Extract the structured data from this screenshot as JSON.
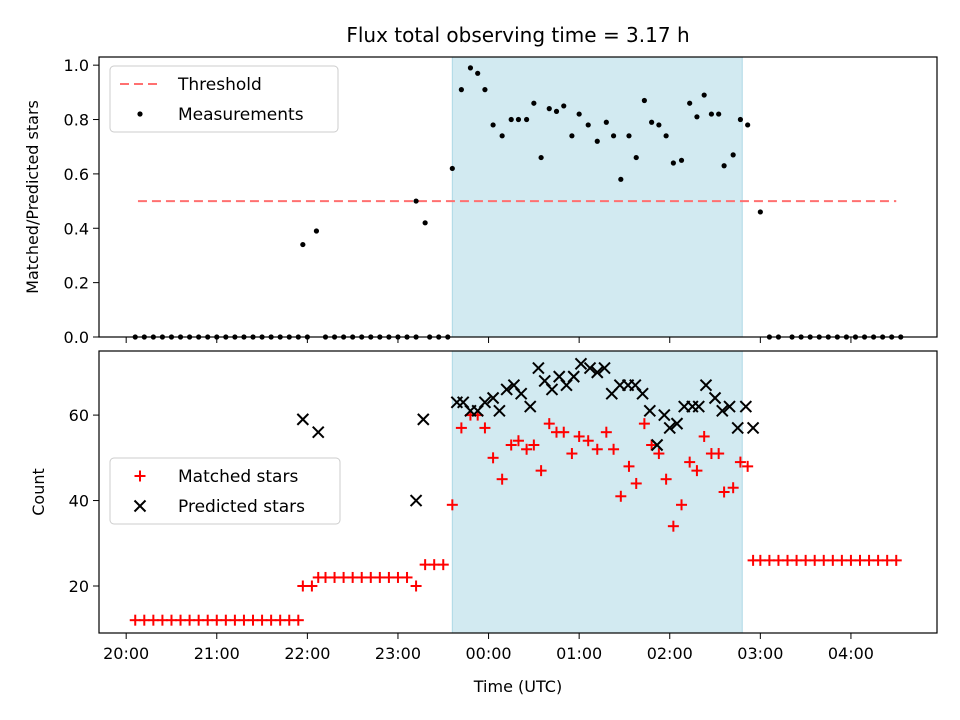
{
  "chart_data": {
    "type": "scatter",
    "title": "Flux total observing time = 3.17 h",
    "xlabel": "Time (UTC)",
    "x_axis_unit": "hours (UTC)",
    "x_ticks": [
      {
        "value": 20,
        "label": "20:00"
      },
      {
        "value": 21,
        "label": "21:00"
      },
      {
        "value": 22,
        "label": "22:00"
      },
      {
        "value": 23,
        "label": "23:00"
      },
      {
        "value": 24,
        "label": "00:00"
      },
      {
        "value": 25,
        "label": "01:00"
      },
      {
        "value": 26,
        "label": "02:00"
      },
      {
        "value": 27,
        "label": "03:00"
      },
      {
        "value": 28,
        "label": "04:00"
      }
    ],
    "xlim": [
      19.7,
      28.95
    ],
    "shaded_region": {
      "x": [
        23.6,
        26.8
      ],
      "color": "#add8e6"
    },
    "top": {
      "ylabel": "Matched/Predicted stars",
      "ylim": [
        0,
        1.03
      ],
      "y_ticks": [
        {
          "value": 0,
          "label": "0.0"
        },
        {
          "value": 0.2,
          "label": "0.2"
        },
        {
          "value": 0.4,
          "label": "0.4"
        },
        {
          "value": 0.6,
          "label": "0.6"
        },
        {
          "value": 0.8,
          "label": "0.8"
        },
        {
          "value": 1.0,
          "label": "1.0"
        }
      ],
      "legend": [
        {
          "name": "Threshold",
          "marker": "dashed-line",
          "color": "#ff7070"
        },
        {
          "name": "Measurements",
          "marker": "dot",
          "color": "#000000"
        }
      ],
      "threshold": {
        "value": 0.5,
        "x": [
          20.13,
          28.5
        ]
      },
      "measurements": {
        "x": [
          20.1,
          20.2,
          20.3,
          20.4,
          20.5,
          20.6,
          20.7,
          20.8,
          20.9,
          21.0,
          21.1,
          21.2,
          21.3,
          21.4,
          21.5,
          21.6,
          21.7,
          21.8,
          21.9,
          21.95,
          22.0,
          22.1,
          22.2,
          22.3,
          22.4,
          22.5,
          22.6,
          22.7,
          22.8,
          22.9,
          23.0,
          23.1,
          23.2,
          23.2,
          23.3,
          23.35,
          23.45,
          23.55,
          23.6,
          23.7,
          23.8,
          23.88,
          23.96,
          24.05,
          24.15,
          24.25,
          24.33,
          24.42,
          24.5,
          24.58,
          24.67,
          24.75,
          24.83,
          24.92,
          25.0,
          25.1,
          25.2,
          25.3,
          25.38,
          25.46,
          25.55,
          25.63,
          25.72,
          25.8,
          25.88,
          25.96,
          26.04,
          26.13,
          26.22,
          26.3,
          26.38,
          26.46,
          26.54,
          26.6,
          26.7,
          26.78,
          26.86,
          27.0,
          27.1,
          27.2,
          27.35,
          27.45,
          27.55,
          27.65,
          27.75,
          27.85,
          27.95,
          28.05,
          28.15,
          28.25,
          28.35,
          28.45,
          28.55
        ],
        "y": [
          0,
          0,
          0,
          0,
          0,
          0,
          0,
          0,
          0,
          0,
          0,
          0,
          0,
          0,
          0,
          0,
          0,
          0,
          0,
          0.34,
          0,
          0.39,
          0,
          0,
          0,
          0,
          0,
          0,
          0,
          0,
          0,
          0,
          0,
          0.5,
          0.42,
          0,
          0,
          0,
          0.62,
          0.91,
          0.99,
          0.97,
          0.91,
          0.78,
          0.74,
          0.8,
          0.8,
          0.8,
          0.86,
          0.66,
          0.84,
          0.83,
          0.85,
          0.74,
          0.82,
          0.78,
          0.72,
          0.79,
          0.74,
          0.58,
          0.74,
          0.66,
          0.87,
          0.79,
          0.78,
          0.74,
          0.64,
          0.65,
          0.86,
          0.81,
          0.89,
          0.82,
          0.82,
          0.63,
          0.67,
          0.8,
          0.78,
          0.46,
          0,
          0,
          0,
          0,
          0,
          0,
          0,
          0,
          0,
          0,
          0,
          0,
          0,
          0,
          0
        ]
      }
    },
    "bottom": {
      "ylabel": "Count",
      "ylim": [
        9,
        75
      ],
      "y_ticks": [
        {
          "value": 20,
          "label": "20"
        },
        {
          "value": 40,
          "label": "40"
        },
        {
          "value": 60,
          "label": "60"
        }
      ],
      "legend": [
        {
          "name": "Matched stars",
          "marker": "plus",
          "color": "#ff0000"
        },
        {
          "name": "Predicted stars",
          "marker": "x",
          "color": "#000000"
        }
      ],
      "matched": {
        "x": [
          20.1,
          20.2,
          20.3,
          20.4,
          20.5,
          20.6,
          20.7,
          20.8,
          20.9,
          21.0,
          21.1,
          21.2,
          21.3,
          21.4,
          21.5,
          21.6,
          21.7,
          21.8,
          21.9,
          21.95,
          22.05,
          22.12,
          22.2,
          22.3,
          22.4,
          22.5,
          22.6,
          22.7,
          22.8,
          22.9,
          23.0,
          23.1,
          23.2,
          23.3,
          23.4,
          23.5,
          23.6,
          23.7,
          23.8,
          23.88,
          23.96,
          24.05,
          24.15,
          24.25,
          24.33,
          24.42,
          24.5,
          24.58,
          24.67,
          24.75,
          24.83,
          24.92,
          25.0,
          25.1,
          25.2,
          25.3,
          25.38,
          25.46,
          25.55,
          25.63,
          25.72,
          25.8,
          25.88,
          25.96,
          26.04,
          26.13,
          26.22,
          26.3,
          26.38,
          26.46,
          26.54,
          26.6,
          26.7,
          26.78,
          26.86,
          26.92,
          27.0,
          27.1,
          27.2,
          27.3,
          27.4,
          27.5,
          27.6,
          27.7,
          27.8,
          27.9,
          28.0,
          28.1,
          28.2,
          28.3,
          28.4,
          28.5
        ],
        "y": [
          12,
          12,
          12,
          12,
          12,
          12,
          12,
          12,
          12,
          12,
          12,
          12,
          12,
          12,
          12,
          12,
          12,
          12,
          12,
          20,
          20,
          22,
          22,
          22,
          22,
          22,
          22,
          22,
          22,
          22,
          22,
          22,
          20,
          25,
          25,
          25,
          39,
          57,
          60,
          60,
          57,
          50,
          45,
          53,
          54,
          52,
          53,
          47,
          58,
          56,
          56,
          51,
          55,
          54,
          52,
          56,
          52,
          41,
          48,
          44,
          58,
          53,
          51,
          45,
          34,
          39,
          49,
          47,
          55,
          51,
          51,
          42,
          43,
          49,
          48,
          26,
          26,
          26,
          26,
          26,
          26,
          26,
          26,
          26,
          26,
          26,
          26,
          26,
          26,
          26,
          26,
          26
        ]
      },
      "predicted": {
        "x": [
          21.95,
          22.12,
          23.2,
          23.28,
          23.65,
          23.72,
          23.8,
          23.88,
          23.96,
          24.05,
          24.12,
          24.2,
          24.28,
          24.36,
          24.46,
          24.55,
          24.62,
          24.7,
          24.78,
          24.86,
          24.94,
          25.02,
          25.12,
          25.2,
          25.28,
          25.36,
          25.45,
          25.54,
          25.62,
          25.7,
          25.78,
          25.86,
          25.94,
          26.0,
          26.08,
          26.16,
          26.25,
          26.32,
          26.4,
          26.5,
          26.58,
          26.66,
          26.75,
          26.84,
          26.92
        ],
        "y": [
          59,
          56,
          40,
          59,
          63,
          63,
          61,
          61,
          63,
          64,
          61,
          66,
          67,
          65,
          62,
          71,
          68,
          66,
          69,
          67,
          69,
          72,
          71,
          70,
          71,
          65,
          67,
          67,
          67,
          65,
          61,
          53,
          60,
          57,
          58,
          62,
          62,
          62,
          67,
          64,
          61,
          62,
          57,
          62,
          57
        ]
      }
    }
  }
}
